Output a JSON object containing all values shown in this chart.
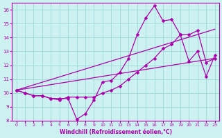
{
  "xlabel": "Windchill (Refroidissement éolien,°C)",
  "xlim": [
    -0.5,
    23.5
  ],
  "ylim": [
    8,
    16.5
  ],
  "xticks": [
    0,
    1,
    2,
    3,
    4,
    5,
    6,
    7,
    8,
    9,
    10,
    11,
    12,
    13,
    14,
    15,
    16,
    17,
    18,
    19,
    20,
    21,
    22,
    23
  ],
  "yticks": [
    8,
    9,
    10,
    11,
    12,
    13,
    14,
    15,
    16
  ],
  "line_color": "#aa00aa",
  "bg_color": "#cdf0f0",
  "grid_color": "#9dd9d9",
  "line1_x": [
    0,
    1,
    2,
    3,
    4,
    5,
    6,
    7,
    8,
    9,
    10,
    11,
    12,
    13,
    14,
    15,
    16,
    17,
    18,
    19,
    20,
    21,
    22,
    23
  ],
  "line1_y": [
    10.2,
    10.0,
    9.8,
    9.8,
    9.6,
    9.6,
    9.6,
    8.1,
    8.5,
    9.5,
    10.8,
    10.9,
    11.5,
    12.5,
    14.2,
    15.4,
    16.3,
    15.2,
    15.3,
    14.2,
    12.3,
    13.0,
    11.2,
    12.7
  ],
  "line2_x": [
    0,
    1,
    2,
    3,
    4,
    5,
    6,
    7,
    8,
    9,
    10,
    11,
    12,
    13,
    14,
    15,
    16,
    17,
    18,
    19,
    20,
    21,
    22,
    23
  ],
  "line2_y": [
    10.2,
    10.0,
    9.8,
    9.8,
    9.6,
    9.5,
    9.7,
    9.7,
    9.7,
    9.7,
    10.0,
    10.2,
    10.5,
    11.0,
    11.5,
    12.0,
    12.5,
    13.2,
    13.5,
    14.2,
    14.2,
    14.5,
    12.2,
    12.5
  ],
  "line3_x": [
    0,
    23
  ],
  "line3_y": [
    10.2,
    14.6
  ],
  "line4_x": [
    0,
    23
  ],
  "line4_y": [
    10.2,
    12.5
  ],
  "markersize": 2.5,
  "linewidth": 0.9
}
